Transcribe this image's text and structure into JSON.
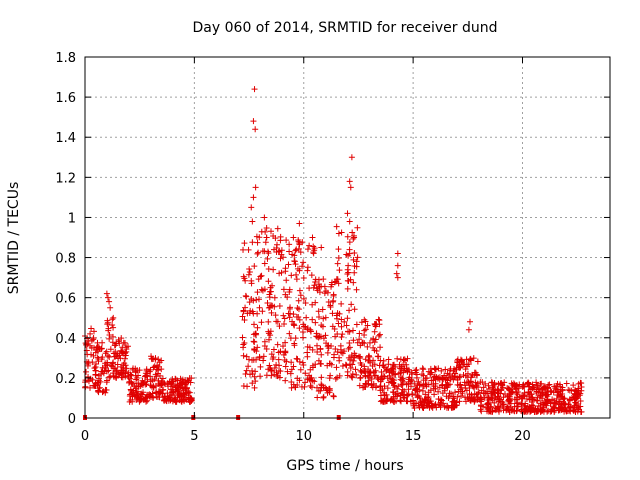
{
  "chart_data": {
    "type": "scatter",
    "title": "Day 060 of 2014, SRMTID for receiver dund",
    "xlabel": "GPS time / hours",
    "ylabel": "SRMTID / TECUs",
    "xlim": [
      0,
      24
    ],
    "ylim": [
      0,
      1.8
    ],
    "xticks": [
      0,
      5,
      10,
      15,
      20
    ],
    "yticks": [
      0,
      0.2,
      0.4,
      0.6,
      0.8,
      1,
      1.2,
      1.4,
      1.6,
      1.8
    ],
    "ytick_labels": [
      "0",
      "0.2",
      "0.4",
      "0.6",
      "0.8",
      "1",
      "1.2",
      "1.4",
      "1.6",
      "1.8"
    ],
    "grid": true,
    "marker": "+",
    "color": "#e00000",
    "series": [
      {
        "name": "SRMTID",
        "segments": [
          {
            "x_start": 0.0,
            "x_end": 0.5,
            "min": 0.15,
            "max": 0.45
          },
          {
            "x_start": 0.5,
            "x_end": 1.0,
            "min": 0.12,
            "max": 0.38
          },
          {
            "x_start": 1.0,
            "x_end": 1.3,
            "min": 0.18,
            "max": 0.5
          },
          {
            "x_start": 1.3,
            "x_end": 2.0,
            "min": 0.2,
            "max": 0.4
          },
          {
            "x_start": 2.0,
            "x_end": 3.0,
            "min": 0.08,
            "max": 0.25
          },
          {
            "x_start": 3.0,
            "x_end": 3.5,
            "min": 0.1,
            "max": 0.32
          },
          {
            "x_start": 3.5,
            "x_end": 4.9,
            "min": 0.08,
            "max": 0.2
          },
          {
            "x_start": 7.2,
            "x_end": 7.8,
            "min": 0.15,
            "max": 0.9
          },
          {
            "x_start": 7.8,
            "x_end": 9.0,
            "min": 0.2,
            "max": 0.95
          },
          {
            "x_start": 9.0,
            "x_end": 10.5,
            "min": 0.15,
            "max": 0.9
          },
          {
            "x_start": 10.5,
            "x_end": 11.5,
            "min": 0.1,
            "max": 0.7
          },
          {
            "x_start": 11.5,
            "x_end": 12.5,
            "min": 0.2,
            "max": 1.0
          },
          {
            "x_start": 12.5,
            "x_end": 13.5,
            "min": 0.15,
            "max": 0.5
          },
          {
            "x_start": 13.5,
            "x_end": 15.0,
            "min": 0.08,
            "max": 0.3
          },
          {
            "x_start": 15.0,
            "x_end": 17.0,
            "min": 0.05,
            "max": 0.25
          },
          {
            "x_start": 17.0,
            "x_end": 18.0,
            "min": 0.08,
            "max": 0.3
          },
          {
            "x_start": 18.0,
            "x_end": 22.7,
            "min": 0.03,
            "max": 0.18
          }
        ],
        "notable_points": [
          {
            "x": 1.0,
            "y": 0.62
          },
          {
            "x": 1.05,
            "y": 0.6
          },
          {
            "x": 1.1,
            "y": 0.58
          },
          {
            "x": 1.15,
            "y": 0.55
          },
          {
            "x": 7.75,
            "y": 1.64
          },
          {
            "x": 7.7,
            "y": 1.48
          },
          {
            "x": 7.78,
            "y": 1.44
          },
          {
            "x": 7.8,
            "y": 1.15
          },
          {
            "x": 7.7,
            "y": 1.1
          },
          {
            "x": 7.6,
            "y": 1.05
          },
          {
            "x": 7.65,
            "y": 0.98
          },
          {
            "x": 8.2,
            "y": 1.0
          },
          {
            "x": 8.3,
            "y": 0.9
          },
          {
            "x": 9.8,
            "y": 0.97
          },
          {
            "x": 10.4,
            "y": 0.9
          },
          {
            "x": 10.8,
            "y": 0.85
          },
          {
            "x": 12.2,
            "y": 1.3
          },
          {
            "x": 12.1,
            "y": 1.18
          },
          {
            "x": 12.15,
            "y": 1.15
          },
          {
            "x": 12.0,
            "y": 1.02
          },
          {
            "x": 12.1,
            "y": 0.98
          },
          {
            "x": 12.3,
            "y": 0.9
          },
          {
            "x": 14.3,
            "y": 0.82
          },
          {
            "x": 14.3,
            "y": 0.76
          },
          {
            "x": 14.25,
            "y": 0.72
          },
          {
            "x": 14.3,
            "y": 0.7
          },
          {
            "x": 17.6,
            "y": 0.48
          },
          {
            "x": 17.55,
            "y": 0.44
          }
        ],
        "zero_markers": [
          0.0,
          4.95,
          7.0,
          11.6
        ]
      }
    ]
  }
}
